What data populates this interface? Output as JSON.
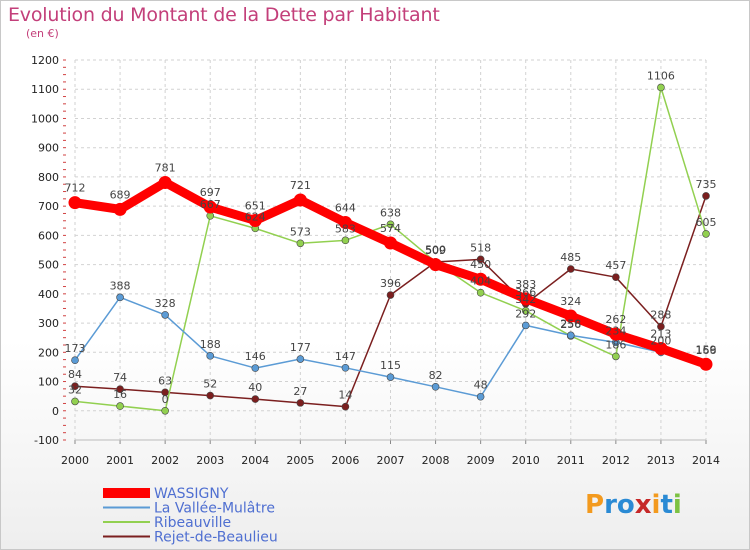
{
  "title": "Evolution du Montant de la Dette par Habitant",
  "subtitle": "(en €)",
  "logo": {
    "text": "Proxiti",
    "letters": [
      "P",
      "r",
      "o",
      "x",
      "i",
      "t",
      "i"
    ],
    "colors": [
      "#f39a1e",
      "#2a8ad4",
      "#2a8ad4",
      "#c62828",
      "#f39a1e",
      "#2a8ad4",
      "#7cc242"
    ]
  },
  "chart_data": {
    "type": "line",
    "x": [
      "2000",
      "2001",
      "2002",
      "2003",
      "2004",
      "2005",
      "2006",
      "2007",
      "2008",
      "2009",
      "2010",
      "2011",
      "2012",
      "2013",
      "2014"
    ],
    "yticks": [
      -100,
      0,
      100,
      200,
      300,
      400,
      500,
      600,
      700,
      800,
      900,
      1000,
      1100,
      1200
    ],
    "ylim": [
      -100,
      1200
    ],
    "grid": true,
    "legend_position": "bottom-left",
    "series": [
      {
        "name": "WASSIGNY",
        "color": "#ff0000",
        "values": [
          712,
          689,
          781,
          697,
          651,
          721,
          644,
          574,
          500,
          450,
          383,
          324,
          262,
          213,
          159
        ],
        "labels": [
          "712",
          "689",
          "781",
          "697",
          "651",
          "721",
          "644",
          "574",
          "500",
          "450",
          "383",
          "324",
          "262",
          "213",
          "159"
        ]
      },
      {
        "name": "La Vallée-Mulâtre",
        "color": "#5b9bd5",
        "values": [
          173,
          388,
          328,
          188,
          146,
          177,
          147,
          115,
          82,
          48,
          292,
          258,
          234,
          200,
          166
        ],
        "labels": [
          "173",
          "388",
          "328",
          "188",
          "146",
          "177",
          "147",
          "115",
          "82",
          "48",
          "292",
          "258",
          "234",
          "200",
          "166"
        ]
      },
      {
        "name": "Ribeauville",
        "color": "#92d050",
        "values": [
          32,
          16,
          0,
          667,
          624,
          573,
          583,
          638,
          509,
          404,
          342,
          256,
          186,
          1106,
          605
        ],
        "labels": [
          "32",
          "16",
          "0",
          "667",
          "624",
          "573",
          "583",
          "638",
          "509",
          "404",
          "342",
          "256",
          "186",
          "1106",
          "605"
        ]
      },
      {
        "name": "Rejet-de-Beaulieu",
        "color": "#7b1f1f",
        "values": [
          84,
          74,
          63,
          52,
          40,
          27,
          14,
          396,
          509,
          518,
          366,
          485,
          457,
          288,
          735
        ],
        "labels": [
          "84",
          "74",
          "63",
          "52",
          "40",
          "27",
          "14",
          "396",
          "509",
          "518",
          "366",
          "485",
          "457",
          "288",
          "735"
        ]
      }
    ]
  }
}
